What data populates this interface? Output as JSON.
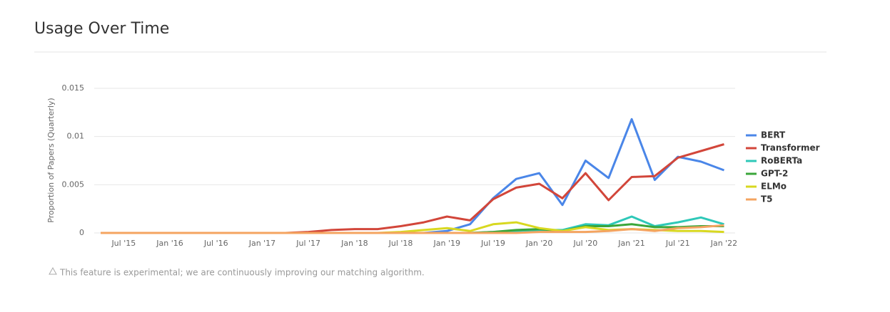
{
  "chart_data": {
    "type": "line",
    "title": "Usage Over Time",
    "y_label": "Proportion of Papers (Quarterly)",
    "note": "This feature is experimental; we are continuously improving our matching algorithm.",
    "categories": [
      null,
      "Jul '15",
      null,
      "Jan '16",
      null,
      "Jul '16",
      null,
      "Jan '17",
      null,
      "Jul '17",
      null,
      "Jan '18",
      null,
      "Jul '18",
      null,
      "Jan '19",
      null,
      "Jul '19",
      null,
      "Jan '20",
      null,
      "Jul '20",
      null,
      "Jan '21",
      null,
      "Jul '21",
      null,
      "Jan '22"
    ],
    "ylim": [
      0,
      0.015
    ],
    "yticks": [
      0,
      0.005,
      0.01,
      0.015
    ],
    "grid": true,
    "legend": "right",
    "series": [
      {
        "name": "BERT",
        "color": "#4a86e8",
        "values": [
          0,
          0,
          0,
          0,
          0,
          0,
          0,
          0,
          0,
          0,
          0,
          0,
          0,
          0,
          0,
          0.0002,
          0.0009,
          0.0036,
          0.0056,
          0.0062,
          0.0029,
          0.0075,
          0.0057,
          0.0118,
          0.0055,
          0.0079,
          0.0074,
          0.0065
        ]
      },
      {
        "name": "Transformer",
        "color": "#d2463a",
        "values": [
          0,
          0,
          0,
          0,
          0,
          0,
          0,
          0,
          0,
          0.0001,
          0.0003,
          0.0004,
          0.0004,
          0.0007,
          0.0011,
          0.0017,
          0.0013,
          0.0035,
          0.0047,
          0.0051,
          0.0036,
          0.0062,
          0.0034,
          0.0058,
          0.0059,
          0.0078,
          0.0085,
          0.0092
        ]
      },
      {
        "name": "RoBERTa",
        "color": "#2ec8b8",
        "values": [
          0,
          0,
          0,
          0,
          0,
          0,
          0,
          0,
          0,
          0,
          0,
          0,
          0,
          0,
          0,
          0,
          0,
          0.0001,
          0.0002,
          0.0003,
          0.0003,
          0.0009,
          0.0008,
          0.0017,
          0.0007,
          0.0011,
          0.0016,
          0.0009
        ]
      },
      {
        "name": "GPT-2",
        "color": "#3aa63a",
        "values": [
          0,
          0,
          0,
          0,
          0,
          0,
          0,
          0,
          0,
          0,
          0,
          0,
          0,
          0,
          0,
          0,
          0,
          0.0001,
          0.0003,
          0.0004,
          0.0002,
          0.0007,
          0.0007,
          0.0009,
          0.0006,
          0.0006,
          0.0007,
          0.0007
        ]
      },
      {
        "name": "ELMo",
        "color": "#d8d820",
        "values": [
          0,
          0,
          0,
          0,
          0,
          0,
          0,
          0,
          0,
          0,
          0,
          0,
          0,
          0.0001,
          0.0003,
          0.0005,
          0.0002,
          0.0009,
          0.0011,
          0.0005,
          0.0002,
          0.0006,
          0.0003,
          0.0004,
          0.0003,
          0.0002,
          0.0002,
          0.0001
        ]
      },
      {
        "name": "T5",
        "color": "#f4a460",
        "values": [
          0,
          0,
          0,
          0,
          0,
          0,
          0,
          0,
          0,
          0,
          0,
          0,
          0,
          0,
          0,
          0,
          0,
          0,
          0,
          0.0001,
          0.0001,
          0.0001,
          0.0002,
          0.0004,
          0.0002,
          0.0005,
          0.0006,
          0.0008
        ]
      }
    ]
  }
}
